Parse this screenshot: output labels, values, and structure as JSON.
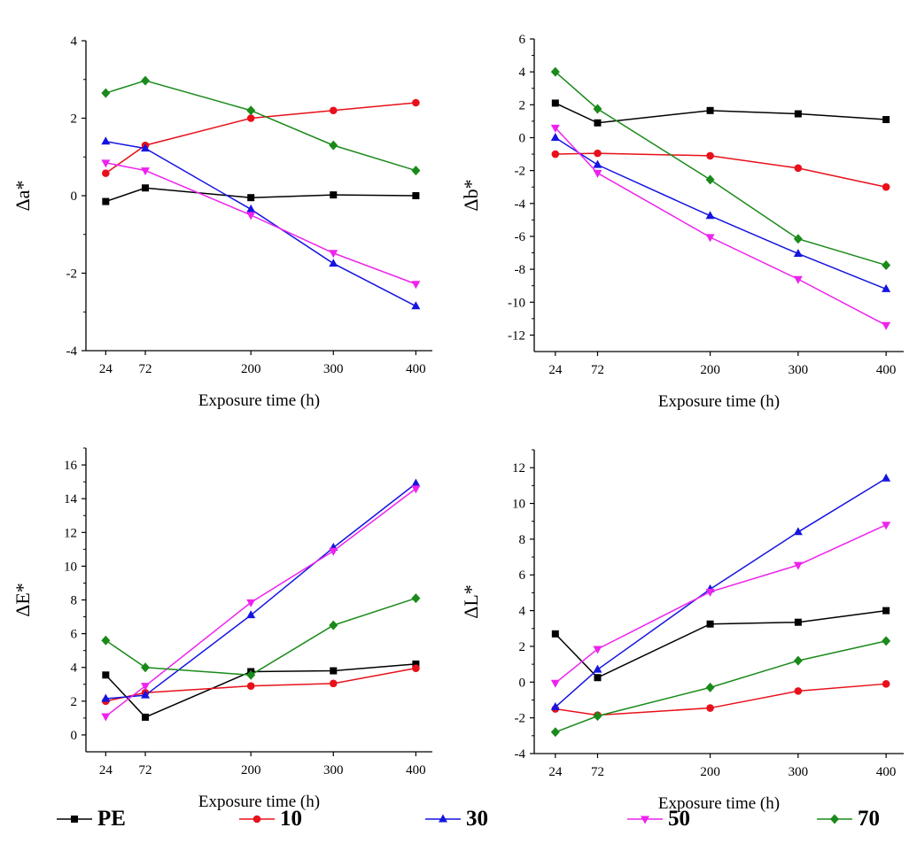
{
  "chart_data": [
    {
      "type": "line",
      "title": "",
      "xlabel": "Exposure time (h)",
      "ylabel": "Δa*",
      "xlim": [
        0,
        420
      ],
      "ylim": [
        -4,
        4
      ],
      "xticks": [
        24,
        72,
        200,
        300,
        400
      ],
      "yticks": [
        -4,
        -2,
        0,
        2,
        4
      ],
      "x": [
        24,
        72,
        200,
        300,
        400
      ],
      "series": [
        {
          "name": "PE",
          "values": [
            -0.15,
            0.2,
            -0.05,
            0.02,
            0.0
          ]
        },
        {
          "name": "10",
          "values": [
            0.58,
            1.3,
            2.0,
            2.2,
            2.4
          ]
        },
        {
          "name": "30",
          "values": [
            1.4,
            1.22,
            -0.35,
            -1.75,
            -2.85
          ]
        },
        {
          "name": "50",
          "values": [
            0.85,
            0.65,
            -0.5,
            -1.48,
            -2.28
          ]
        },
        {
          "name": "70",
          "values": [
            2.65,
            2.97,
            2.2,
            1.3,
            0.65
          ]
        }
      ]
    },
    {
      "type": "line",
      "title": "",
      "xlabel": "Exposure time (h)",
      "ylabel": "Δb*",
      "xlim": [
        0,
        420
      ],
      "ylim": [
        -13,
        6
      ],
      "xticks": [
        24,
        72,
        200,
        300,
        400
      ],
      "yticks": [
        -12,
        -10,
        -8,
        -6,
        -4,
        -2,
        0,
        2,
        4,
        6
      ],
      "x": [
        24,
        72,
        200,
        300,
        400
      ],
      "series": [
        {
          "name": "PE",
          "values": [
            2.1,
            0.9,
            1.65,
            1.45,
            1.1
          ]
        },
        {
          "name": "10",
          "values": [
            -1.0,
            -0.95,
            -1.1,
            -1.85,
            -3.0
          ]
        },
        {
          "name": "30",
          "values": [
            0.0,
            -1.65,
            -4.75,
            -7.05,
            -9.2
          ]
        },
        {
          "name": "50",
          "values": [
            0.6,
            -2.15,
            -6.05,
            -8.6,
            -11.4
          ]
        },
        {
          "name": "70",
          "values": [
            4.0,
            1.75,
            -2.55,
            -6.15,
            -7.75
          ]
        }
      ]
    },
    {
      "type": "line",
      "title": "",
      "xlabel": "Exposure time (h)",
      "ylabel": "ΔE*",
      "xlim": [
        0,
        420
      ],
      "ylim": [
        -1,
        17
      ],
      "xticks": [
        24,
        72,
        200,
        300,
        400
      ],
      "yticks": [
        0,
        2,
        4,
        6,
        8,
        10,
        12,
        14,
        16
      ],
      "x": [
        24,
        72,
        200,
        300,
        400
      ],
      "series": [
        {
          "name": "PE",
          "values": [
            3.55,
            1.05,
            3.75,
            3.8,
            4.2
          ]
        },
        {
          "name": "10",
          "values": [
            2.0,
            2.5,
            2.9,
            3.05,
            3.95
          ]
        },
        {
          "name": "30",
          "values": [
            2.15,
            2.35,
            7.1,
            11.1,
            14.9
          ]
        },
        {
          "name": "50",
          "values": [
            1.1,
            2.9,
            7.85,
            10.9,
            14.6
          ]
        },
        {
          "name": "70",
          "values": [
            5.6,
            4.0,
            3.55,
            6.5,
            8.1
          ]
        }
      ]
    },
    {
      "type": "line",
      "title": "",
      "xlabel": "Exposure time (h)",
      "ylabel": "ΔL*",
      "xlim": [
        0,
        420
      ],
      "ylim": [
        -4,
        13
      ],
      "xticks": [
        24,
        72,
        200,
        300,
        400
      ],
      "yticks": [
        -4,
        -2,
        0,
        2,
        4,
        6,
        8,
        10,
        12
      ],
      "x": [
        24,
        72,
        200,
        300,
        400
      ],
      "series": [
        {
          "name": "PE",
          "values": [
            2.7,
            0.25,
            3.25,
            3.35,
            4.0
          ]
        },
        {
          "name": "10",
          "values": [
            -1.5,
            -1.85,
            -1.45,
            -0.5,
            -0.1
          ]
        },
        {
          "name": "30",
          "values": [
            -1.4,
            0.7,
            5.2,
            8.4,
            11.4
          ]
        },
        {
          "name": "50",
          "values": [
            -0.05,
            1.85,
            5.05,
            6.55,
            8.8
          ]
        },
        {
          "name": "70",
          "values": [
            -2.8,
            -1.9,
            -0.3,
            1.2,
            2.3
          ]
        }
      ]
    }
  ],
  "legend": {
    "placement": "bottom",
    "items": [
      {
        "name": "PE",
        "color": "#000000",
        "marker": "square"
      },
      {
        "name": "10",
        "color": "#e8101a",
        "marker": "circle"
      },
      {
        "name": "30",
        "color": "#1515e0",
        "marker": "triangle-up"
      },
      {
        "name": "50",
        "color": "#ee22ee",
        "marker": "triangle-down"
      },
      {
        "name": "70",
        "color": "#1a8a1a",
        "marker": "diamond"
      }
    ]
  }
}
